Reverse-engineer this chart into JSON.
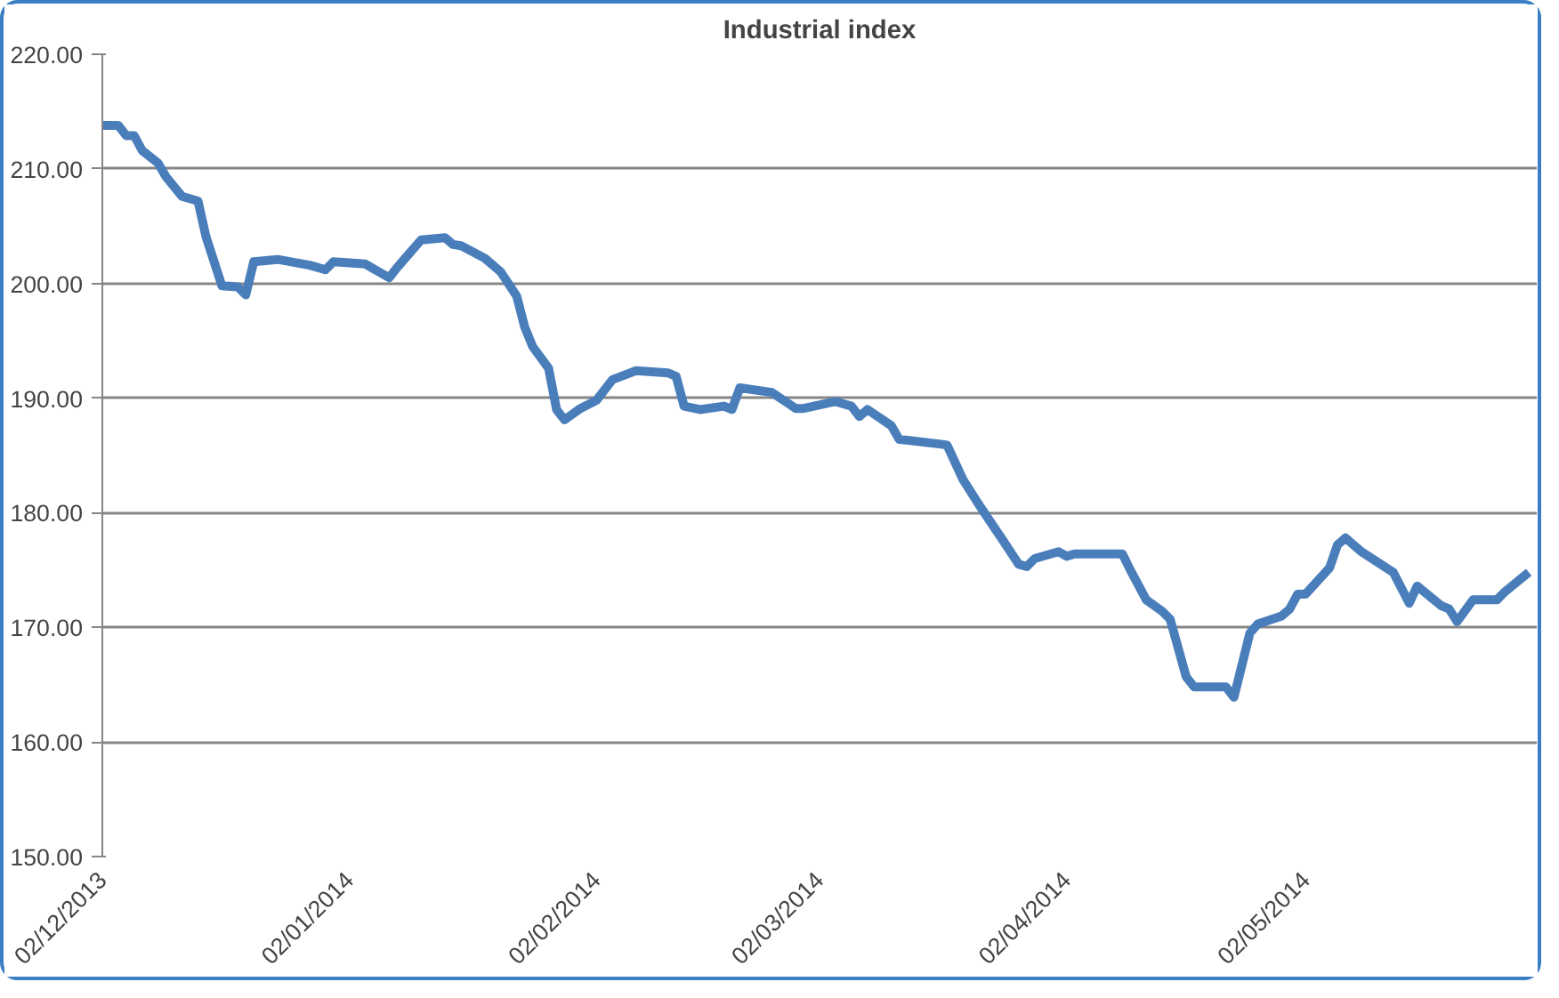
{
  "chart_data": {
    "type": "line",
    "title": "Industrial index",
    "x": [
      "2013-12-02",
      "2013-12-04",
      "2013-12-05",
      "2013-12-06",
      "2013-12-07",
      "2013-12-09",
      "2013-12-10",
      "2013-12-12",
      "2013-12-14",
      "2013-12-15",
      "2013-12-17",
      "2013-12-19",
      "2013-12-20",
      "2013-12-21",
      "2013-12-24",
      "2013-12-28",
      "2013-12-30",
      "2013-12-31",
      "2014-01-04",
      "2014-01-07",
      "2014-01-08",
      "2014-01-09",
      "2014-01-11",
      "2014-01-14",
      "2014-01-15",
      "2014-01-16",
      "2014-01-19",
      "2014-01-21",
      "2014-01-23",
      "2014-01-24",
      "2014-01-25",
      "2014-01-27",
      "2014-01-28",
      "2014-01-29",
      "2014-01-31",
      "2014-02-02",
      "2014-02-04",
      "2014-02-07",
      "2014-02-11",
      "2014-02-12",
      "2014-02-13",
      "2014-02-15",
      "2014-02-18",
      "2014-02-19",
      "2014-02-20",
      "2014-02-24",
      "2014-02-27",
      "2014-02-28",
      "2014-03-04",
      "2014-03-06",
      "2014-03-07",
      "2014-03-08",
      "2014-03-11",
      "2014-03-12",
      "2014-03-17",
      "2014-03-18",
      "2014-03-20",
      "2014-03-22",
      "2014-03-25",
      "2014-03-27",
      "2014-03-28",
      "2014-03-29",
      "2014-04-01",
      "2014-04-02",
      "2014-04-03",
      "2014-04-09",
      "2014-04-10",
      "2014-04-12",
      "2014-04-14",
      "2014-04-15",
      "2014-04-17",
      "2014-04-18",
      "2014-04-22",
      "2014-04-23",
      "2014-04-25",
      "2014-04-26",
      "2014-04-29",
      "2014-04-30",
      "2014-05-01",
      "2014-05-02",
      "2014-05-05",
      "2014-05-06",
      "2014-05-07",
      "2014-05-09",
      "2014-05-13",
      "2014-05-15",
      "2014-05-16",
      "2014-05-19",
      "2014-05-20",
      "2014-05-21",
      "2014-05-23",
      "2014-05-26",
      "2014-05-27",
      "2014-05-30"
    ],
    "series": [
      {
        "color": "#4a7ebb",
        "values": [
          213.8,
          213.8,
          212.9,
          212.9,
          211.6,
          210.5,
          209.3,
          207.6,
          207.2,
          204.1,
          199.8,
          199.7,
          199.0,
          201.9,
          202.1,
          201.6,
          201.2,
          201.9,
          201.7,
          200.5,
          201.4,
          202.2,
          203.8,
          204.0,
          203.4,
          203.3,
          202.2,
          201.0,
          198.9,
          196.2,
          194.5,
          192.6,
          189.0,
          188.1,
          189.1,
          189.8,
          191.6,
          192.4,
          192.2,
          191.9,
          189.3,
          189.0,
          189.3,
          189.0,
          190.9,
          190.5,
          189.1,
          189.1,
          189.7,
          189.3,
          188.4,
          189.0,
          187.6,
          186.4,
          186.0,
          185.9,
          182.9,
          180.7,
          177.6,
          175.5,
          175.3,
          176.0,
          176.6,
          176.2,
          176.4,
          176.4,
          175.0,
          172.4,
          171.4,
          170.7,
          165.7,
          164.8,
          164.8,
          163.9,
          169.5,
          170.3,
          171.0,
          171.6,
          172.9,
          172.9,
          175.2,
          177.2,
          177.8,
          176.6,
          174.8,
          172.1,
          173.6,
          171.9,
          171.6,
          170.5,
          172.4,
          172.4,
          173.1,
          174.8
        ]
      }
    ],
    "xlim": [
      "2013-12-02",
      "2014-05-31"
    ],
    "xticks": [
      {
        "value": "2013-12-02",
        "label": "02/12/2013"
      },
      {
        "value": "2014-01-02",
        "label": "02/01/2014"
      },
      {
        "value": "2014-02-02",
        "label": "02/02/2014"
      },
      {
        "value": "2014-03-02",
        "label": "02/03/2014"
      },
      {
        "value": "2014-04-02",
        "label": "02/04/2014"
      },
      {
        "value": "2014-05-02",
        "label": "02/05/2014"
      }
    ],
    "ylim": [
      150,
      220
    ],
    "yticks": [
      {
        "value": 150,
        "label": "150.00"
      },
      {
        "value": 160,
        "label": "160.00"
      },
      {
        "value": 170,
        "label": "170.00"
      },
      {
        "value": 180,
        "label": "180.00"
      },
      {
        "value": 190,
        "label": "190.00"
      },
      {
        "value": 200,
        "label": "200.00"
      },
      {
        "value": 210,
        "label": "210.00"
      },
      {
        "value": 220,
        "label": "220.00"
      }
    ],
    "grid": "y",
    "line_style": "solid"
  }
}
